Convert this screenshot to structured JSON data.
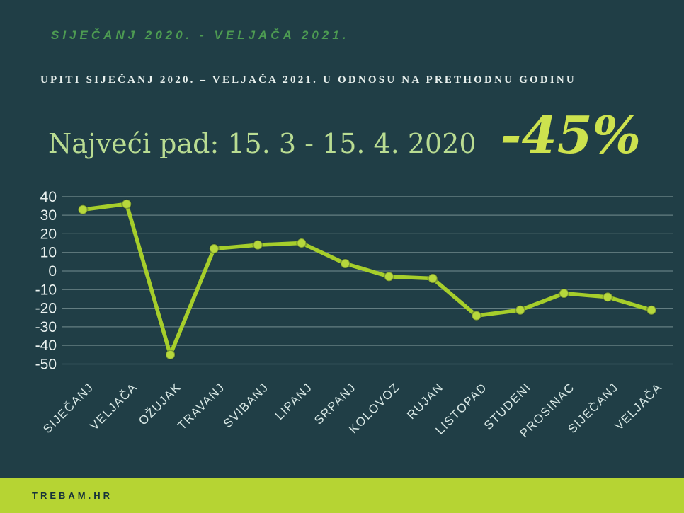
{
  "header": {
    "period_title": "SIJEČANJ 2020. - VELJAČA  2021.",
    "subtitle": "UPITI SIJEČANJ 2020. – VELJAČA 2021. U ODNOSU NA PRETHODNU GODINU",
    "highlight_label": "Najveći pad: 15. 3 - 15. 4. 2020",
    "highlight_value": "-45%"
  },
  "chart_data": {
    "type": "line",
    "categories": [
      "SIJEČANJ",
      "VELJAČA",
      "OŽUJAK",
      "TRAVANJ",
      "SVIBANJ",
      "LIPANJ",
      "SRPANJ",
      "KOLOVOZ",
      "RUJAN",
      "LISTOPAD",
      "STUDENI",
      "PROSINAC",
      "SIJEČANJ",
      "VELJAČA"
    ],
    "values": [
      33,
      36,
      -45,
      12,
      14,
      15,
      4,
      -3,
      -4,
      -24,
      -21,
      -12,
      -14,
      -21
    ],
    "title": "",
    "xlabel": "",
    "ylabel": "",
    "ylim": [
      -50,
      40
    ],
    "ytick_step": 10,
    "yticks": [
      40,
      30,
      20,
      10,
      0,
      -10,
      -20,
      -30,
      -40,
      -50
    ],
    "grid": true,
    "legend_position": "none",
    "line_color": "#a6ce2b",
    "marker_color": "#b7d83c",
    "gridline_color": "rgba(214,232,229,0.38)",
    "ytick_color": "#eaf2f0",
    "xtick_color": "#d8e8e5"
  },
  "footer": {
    "brand": "TREBAM.HR"
  },
  "colors": {
    "background": "#203e46",
    "accent_lime": "#b6d433",
    "title_green": "#4d9b52",
    "pale_green": "#b9dc92",
    "value_green": "#cde24e",
    "text_light": "#eaf2ef"
  }
}
